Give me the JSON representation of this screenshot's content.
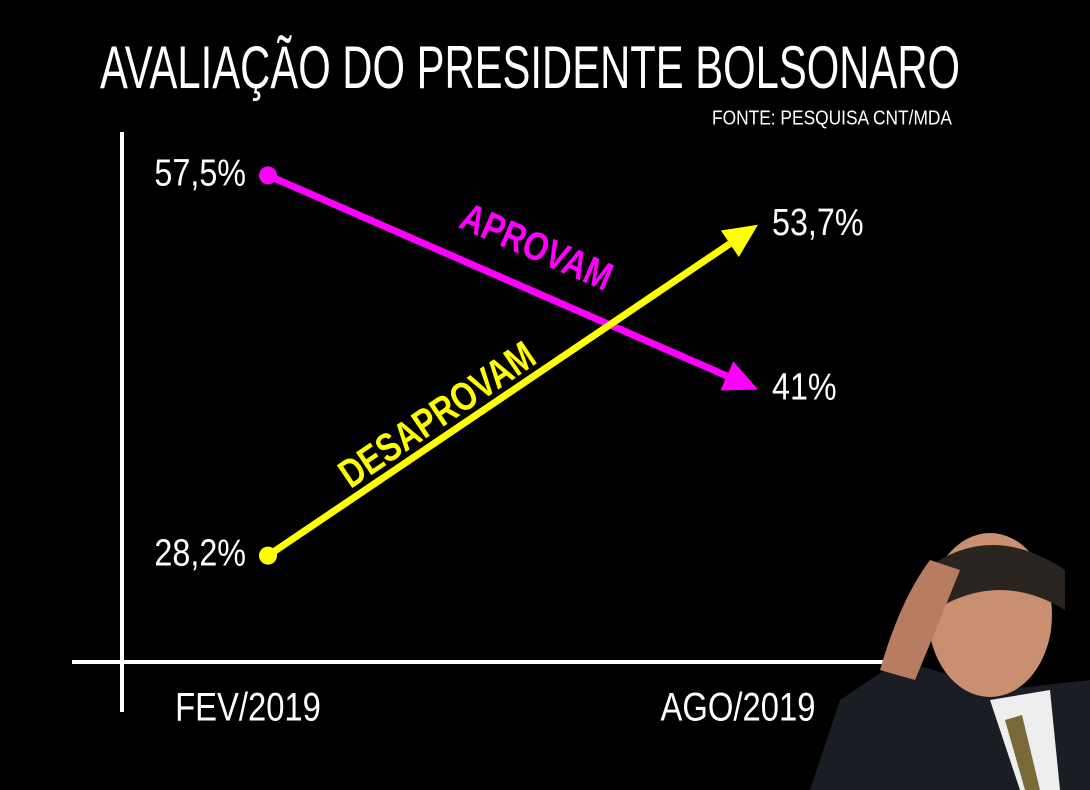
{
  "chart_data": {
    "type": "line",
    "title": "AVALIAÇÃO DO PRESIDENTE BOLSONARO",
    "subtitle": "FONTE: PESQUISA CNT/MDA",
    "categories": [
      "FEV/2019",
      "AGO/2019"
    ],
    "ylim": [
      20,
      61
    ],
    "series": [
      {
        "name": "APROVAM",
        "color": "#ff00ff",
        "values": [
          57.5,
          41
        ],
        "value_labels": [
          "57,5%",
          "41%"
        ]
      },
      {
        "name": "DESAPROVAM",
        "color": "#ffff00",
        "values": [
          28.2,
          53.7
        ],
        "value_labels": [
          "28,2%",
          "53,7%"
        ]
      }
    ]
  }
}
